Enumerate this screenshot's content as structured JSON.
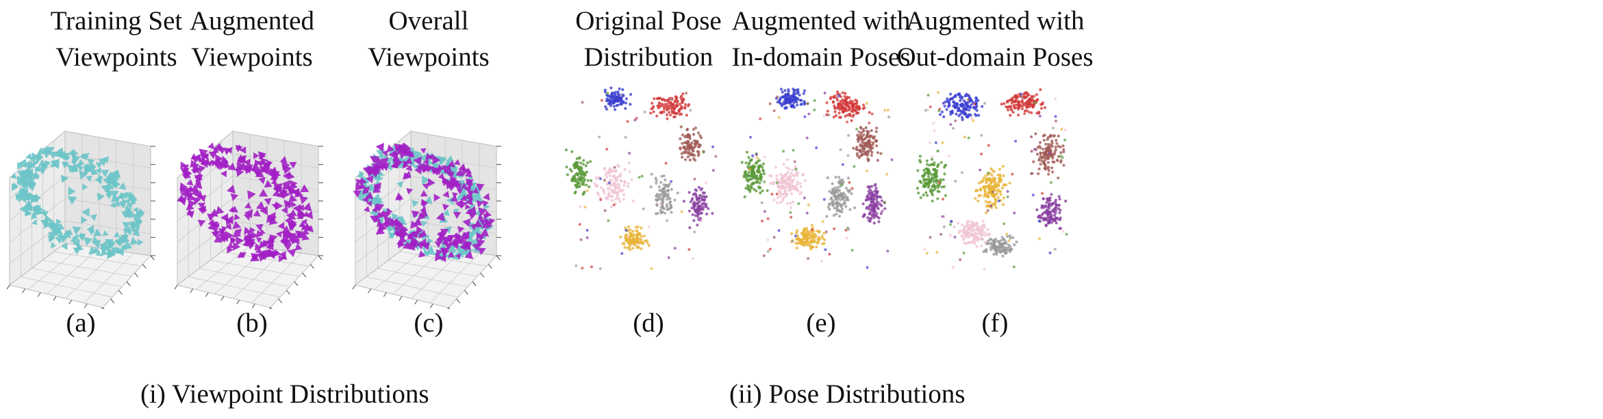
{
  "figure": {
    "panels": [
      {
        "id": "a",
        "title_lines": [
          "Training Set",
          "Viewpoints"
        ],
        "label": "(a)",
        "kind": "viewpoint",
        "mode": "train"
      },
      {
        "id": "b",
        "title_lines": [
          "Augmented",
          "Viewpoints"
        ],
        "label": "(b)",
        "kind": "viewpoint",
        "mode": "aug"
      },
      {
        "id": "c",
        "title_lines": [
          "Overall",
          "Viewpoints"
        ],
        "label": "(c)",
        "kind": "viewpoint",
        "mode": "both"
      },
      {
        "id": "d",
        "title_lines": [
          "Original Pose",
          "Distribution"
        ],
        "label": "(d)",
        "kind": "pose",
        "mode": "orig"
      },
      {
        "id": "e",
        "title_lines": [
          "Augmented with",
          "In-domain Poses"
        ],
        "label": "(e)",
        "kind": "pose",
        "mode": "in"
      },
      {
        "id": "f",
        "title_lines": [
          "Augmented with",
          "Out-domain Poses"
        ],
        "label": "(f)",
        "kind": "pose",
        "mode": "out"
      }
    ],
    "groups": [
      {
        "id": "i",
        "label": "(i) Viewpoint Distributions"
      },
      {
        "id": "ii",
        "label": "(ii) Pose Distributions"
      }
    ]
  },
  "colors": {
    "train_viewpoint": "#6cc4c8",
    "augmented_viewpoint": "#a21fc4",
    "axis_pane": "#ececec",
    "grid": "#c8c8c8",
    "cluster_colors": [
      "#3a3fd0",
      "#d23a3a",
      "#a05a55",
      "#8a3fa0",
      "#9a9a9a",
      "#e8b43a",
      "#f0c4d4",
      "#5a9a3a"
    ]
  }
}
